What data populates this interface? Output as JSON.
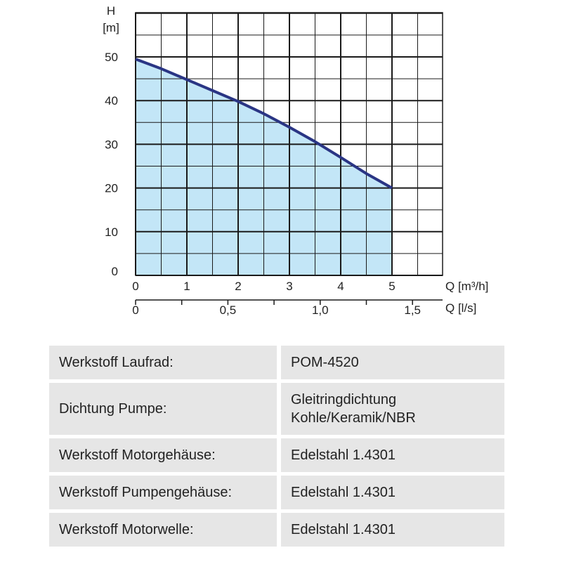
{
  "chart_data": {
    "type": "area",
    "y_axis": {
      "label_top": "H",
      "label_unit": "[m]",
      "range": [
        0,
        55
      ],
      "ticks": [
        0,
        10,
        20,
        30,
        40,
        50
      ],
      "tick_labels": [
        "0",
        "10",
        "20",
        "30",
        "40",
        "50"
      ]
    },
    "x_axis": {
      "label": "Q [m³/h]",
      "range": [
        0,
        6
      ],
      "ticks": [
        0,
        1,
        2,
        3,
        4,
        5
      ],
      "tick_labels": [
        "0",
        "1",
        "2",
        "3",
        "4",
        "5"
      ]
    },
    "x_axis_secondary": {
      "label": "Q [l/s]",
      "ticks": [
        0,
        0.5,
        1.0,
        1.5
      ],
      "tick_labels": [
        "0",
        "0,5",
        "1,0",
        "1,5"
      ]
    },
    "grid": true,
    "series": [
      {
        "x": [
          0,
          0.5,
          1,
          1.5,
          2,
          2.5,
          3,
          3.5,
          4,
          4.5,
          5
        ],
        "y": [
          49.5,
          47.3,
          44.8,
          42.3,
          39.8,
          37,
          33.9,
          30.6,
          27,
          23.3,
          20
        ],
        "fill": true
      }
    ],
    "colors": {
      "line": "#2a3584",
      "fill": "#c3e6f7",
      "grid": "#1a1a1a"
    }
  },
  "specs": [
    {
      "label": "Werkstoff Laufrad:",
      "value_lines": [
        "POM-4520"
      ]
    },
    {
      "label": "Dichtung Pumpe:",
      "value_lines": [
        "Gleitringdichtung",
        "Kohle/Keramik/NBR"
      ]
    },
    {
      "label": "Werkstoff Motorgehäuse:",
      "value_lines": [
        "Edelstahl 1.4301"
      ]
    },
    {
      "label": "Werkstoff Pumpengehäuse:",
      "value_lines": [
        "Edelstahl 1.4301"
      ]
    },
    {
      "label": "Werkstoff Motorwelle:",
      "value_lines": [
        "Edelstahl 1.4301"
      ]
    }
  ]
}
